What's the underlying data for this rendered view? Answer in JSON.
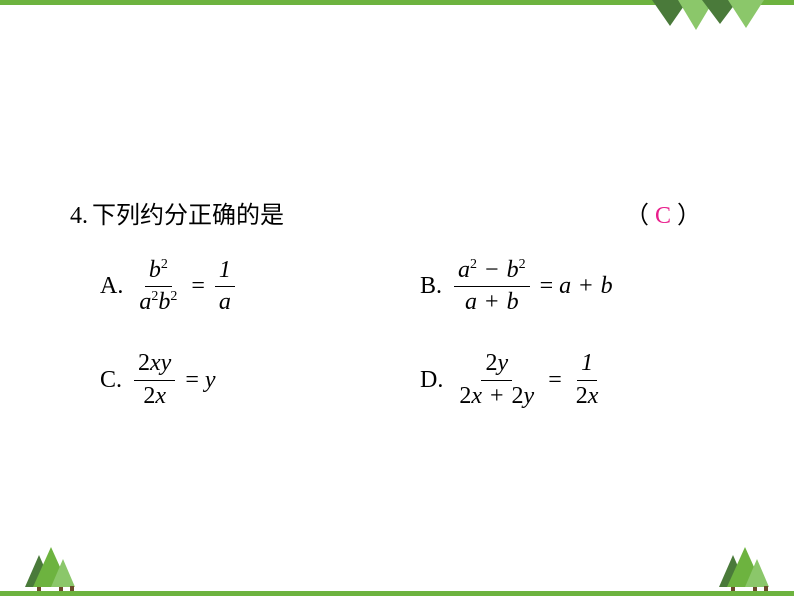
{
  "question": {
    "number": "4.",
    "text": "下列约分正确的是",
    "answer": "C",
    "paren_left": "（",
    "paren_right": "）"
  },
  "options": {
    "A": {
      "label": "A.",
      "frac1_num_html": "b<sup>2</sup>",
      "frac1_den_html": "a<sup>2</sup>b<sup>2</sup>",
      "eq": "=",
      "frac2_num": "1",
      "frac2_den": "a"
    },
    "B": {
      "label": "B.",
      "frac1_num_html": "a<sup>2</sup> − b<sup>2</sup>",
      "frac1_den_html": "a + b",
      "eq": "=",
      "rhs": "a + b"
    },
    "C": {
      "label": "C.",
      "frac1_num": "2xy",
      "frac1_den": "2x",
      "eq": "=",
      "rhs": "y"
    },
    "D": {
      "label": "D.",
      "frac1_num": "2y",
      "frac1_den": "2x + 2y",
      "eq": "=",
      "frac2_num": "1",
      "frac2_den": "2x"
    }
  },
  "colors": {
    "border_green": "#6db33f",
    "dark_green": "#4a7a3a",
    "light_green": "#8bc76a",
    "answer_pink": "#e91e8c",
    "text": "#000000",
    "background": "#ffffff"
  },
  "typography": {
    "question_fontsize": 24,
    "option_fontsize": 24,
    "superscript_fontsize": 14
  }
}
